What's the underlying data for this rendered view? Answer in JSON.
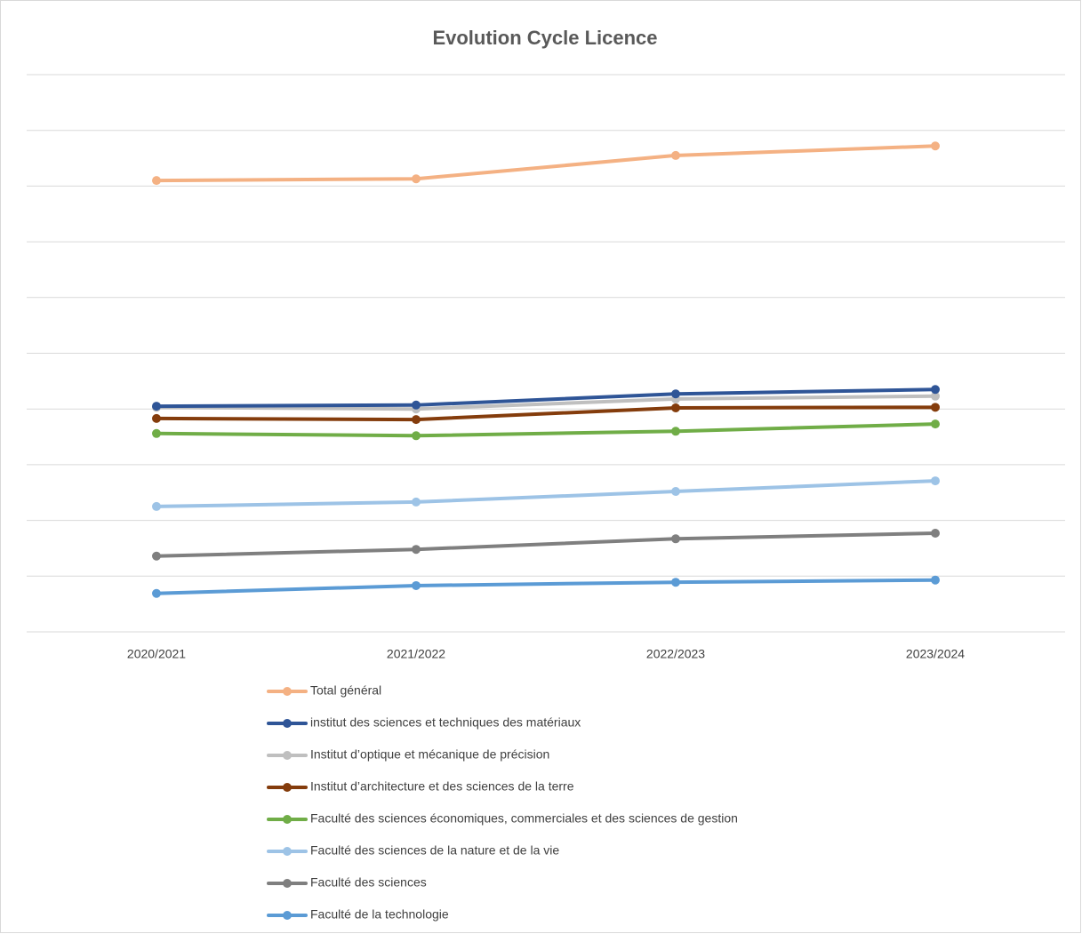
{
  "chart_data": {
    "type": "line",
    "title": "Evolution Cycle Licence",
    "categories": [
      "2020/2021",
      "2021/2022",
      "2022/2023",
      "2023/2024"
    ],
    "ylim": [
      0,
      10
    ],
    "yticks": [
      0,
      1,
      2,
      3,
      4,
      5,
      6,
      7,
      8,
      9,
      10
    ],
    "grid": true,
    "series": [
      {
        "name": "Total général",
        "color": "#f4b183",
        "values": [
          8.1,
          8.13,
          8.55,
          8.72
        ]
      },
      {
        "name": "institut des sciences et techniques des matériaux",
        "color": "#2f5597",
        "values": [
          4.05,
          4.07,
          4.27,
          4.35
        ]
      },
      {
        "name": "Institut d’optique et mécanique de précision",
        "color": "#bfbfbf",
        "values": [
          4.03,
          4.0,
          4.18,
          4.23
        ]
      },
      {
        "name": "Institut d’architecture et des sciences de la terre",
        "color": "#843c0c",
        "values": [
          3.83,
          3.81,
          4.02,
          4.03
        ]
      },
      {
        "name": "Faculté des sciences économiques, commerciales et des sciences de gestion",
        "color": "#70ad47",
        "values": [
          3.56,
          3.52,
          3.6,
          3.73
        ]
      },
      {
        "name": "Faculté des sciences de la nature et de la vie",
        "color": "#9dc3e6",
        "values": [
          2.25,
          2.33,
          2.52,
          2.71
        ]
      },
      {
        "name": "Faculté des sciences",
        "color": "#7f7f7f",
        "values": [
          1.36,
          1.48,
          1.67,
          1.77
        ]
      },
      {
        "name": "Faculté de la technologie",
        "color": "#5b9bd5",
        "values": [
          0.69,
          0.83,
          0.89,
          0.93
        ]
      }
    ]
  }
}
